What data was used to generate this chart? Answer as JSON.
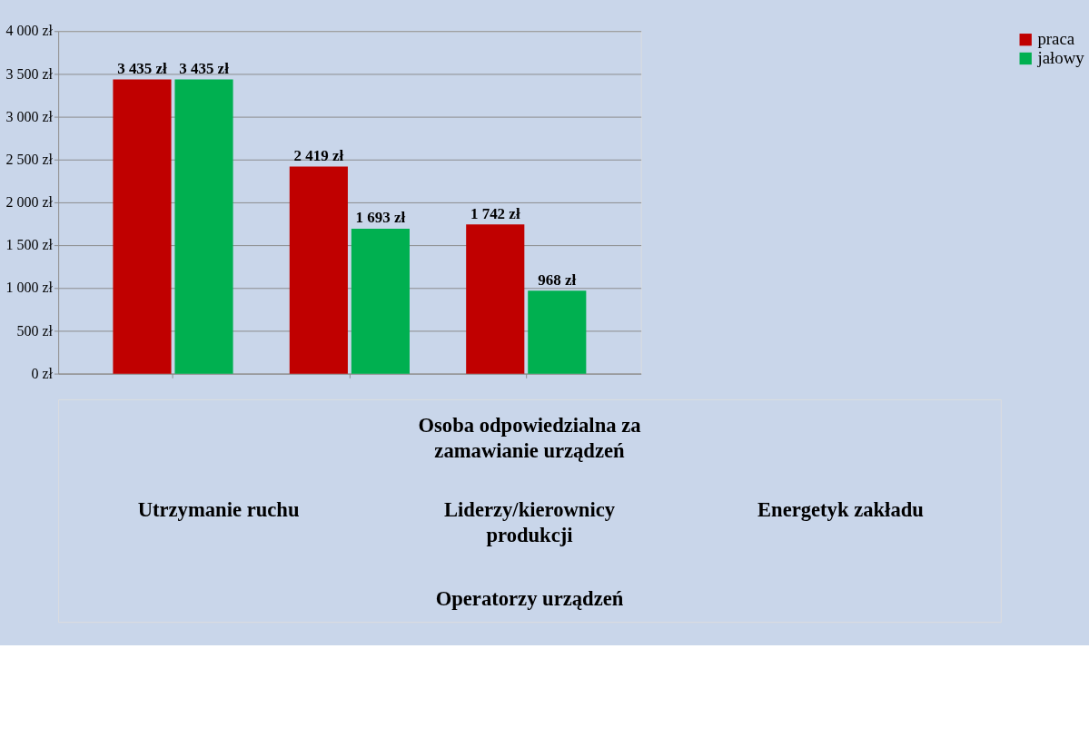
{
  "chart_data": [
    {
      "type": "bar",
      "categories": [
        null,
        null,
        null
      ],
      "series": [
        {
          "name": "praca",
          "color": "#c00000",
          "values": [
            3435,
            2419,
            1742
          ],
          "value_labels": [
            "3 435 zł",
            "2 419 zł",
            "1 742 zł"
          ]
        },
        {
          "name": "jałowy",
          "color": "#00b050",
          "values": [
            3435,
            1693,
            968
          ],
          "value_labels": [
            "3 435 zł",
            "1 693 zł",
            "968 zł"
          ]
        }
      ],
      "ylim": [
        0,
        4000
      ],
      "yticks": [
        {
          "value": 0,
          "label": "0 zł"
        },
        {
          "value": 500,
          "label": "500 zł"
        },
        {
          "value": 1000,
          "label": "1 000 zł"
        },
        {
          "value": 1500,
          "label": "1 500 zł"
        },
        {
          "value": 2000,
          "label": "2 000 zł"
        },
        {
          "value": 2500,
          "label": "2 500 zł"
        },
        {
          "value": 3000,
          "label": "3 000 zł"
        },
        {
          "value": 3500,
          "label": "3 500 zł"
        },
        {
          "value": 4000,
          "label": "4 000 zł"
        }
      ],
      "grid": "y",
      "legend": "right"
    },
    {
      "type": "other",
      "annotations": [
        "Osoba odpowiedzialna za zamawianie urządzeń",
        "Utrzymanie ruchu",
        "Liderzy/kierownicy produkcji",
        "Energetyk zakładu",
        "Operatorzy urządzeń"
      ]
    }
  ]
}
